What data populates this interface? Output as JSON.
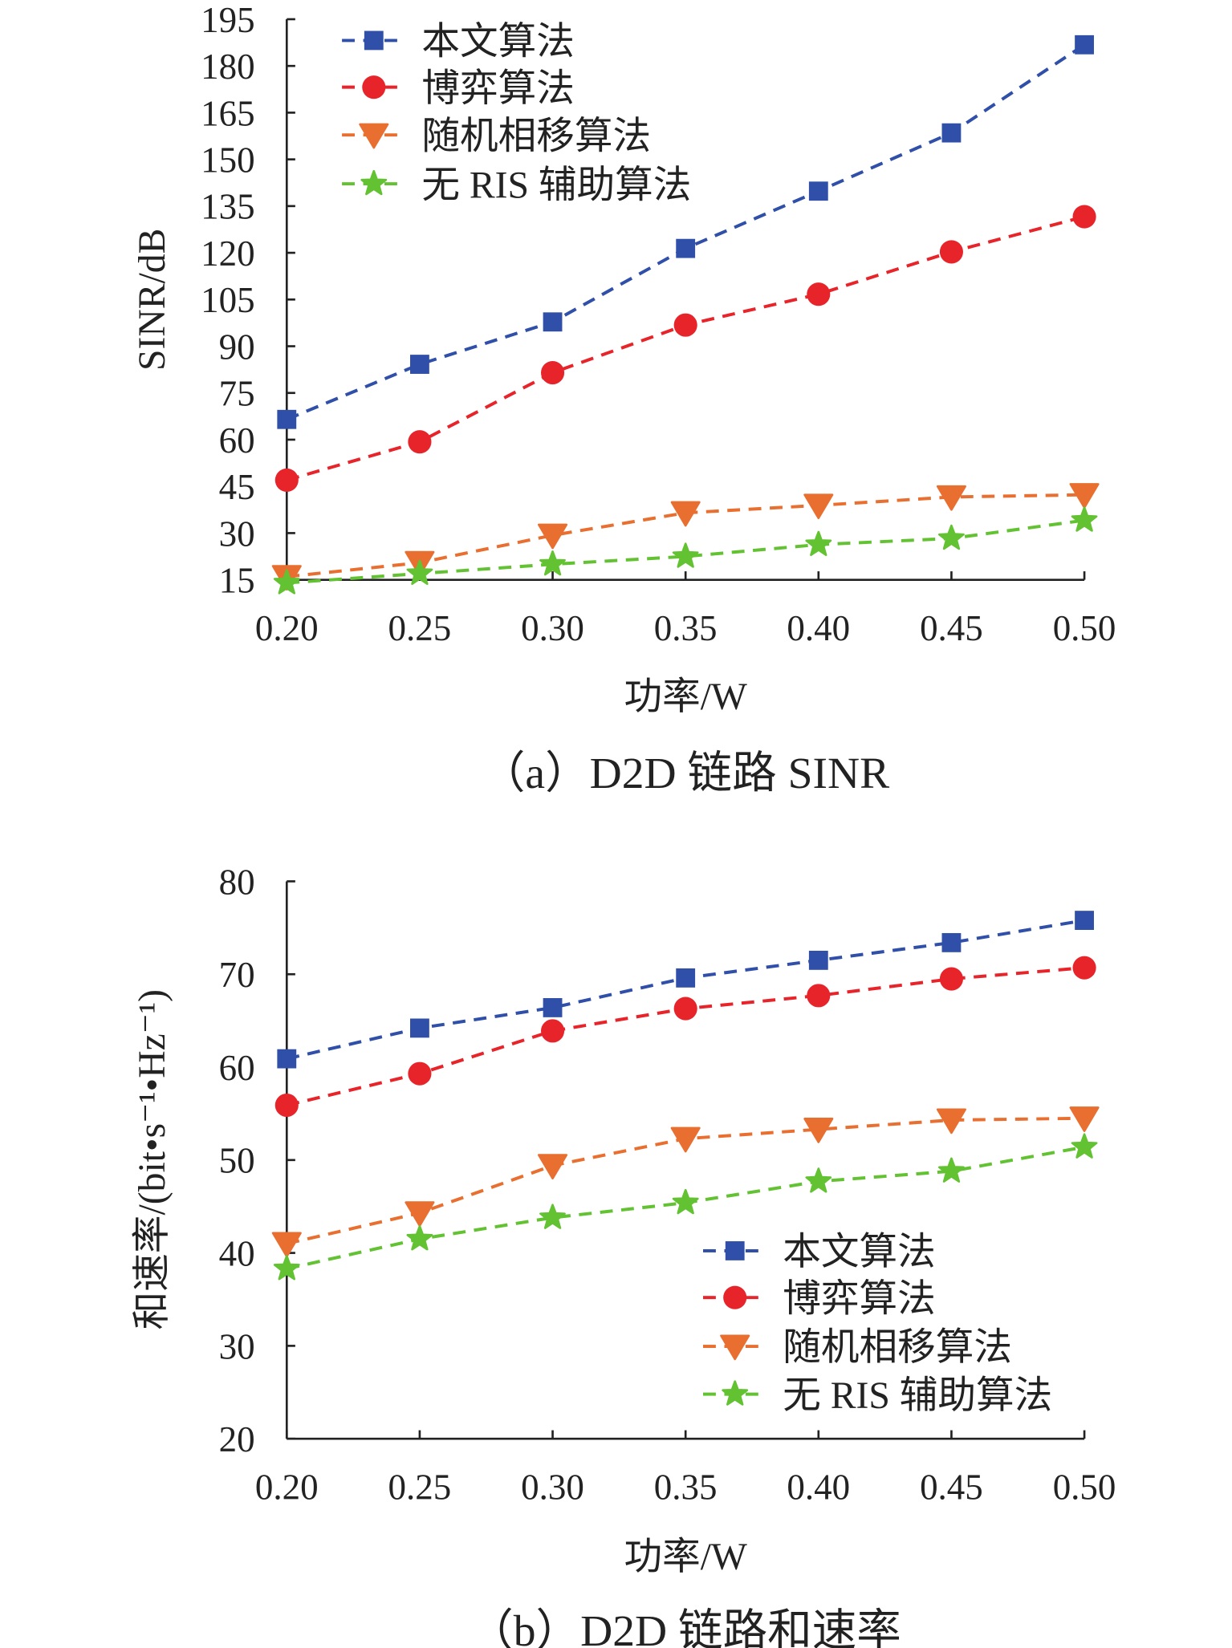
{
  "chart_data": [
    {
      "type": "line",
      "caption": "（a）D2D 链路 SINR",
      "xlabel": "功率/W",
      "ylabel": "SINR/dB",
      "x": [
        0.2,
        0.25,
        0.3,
        0.35,
        0.4,
        0.45,
        0.5
      ],
      "xticks": [
        "0.20",
        "0.25",
        "0.30",
        "0.35",
        "0.40",
        "0.45",
        "0.50"
      ],
      "yticks": [
        "15",
        "30",
        "45",
        "60",
        "75",
        "90",
        "105",
        "120",
        "135",
        "150",
        "165",
        "180",
        "195"
      ],
      "xlim": [
        0.2,
        0.5
      ],
      "ylim": [
        15,
        195
      ],
      "legend_position": "top-left",
      "series": [
        {
          "name": "本文算法",
          "color": "#2f4fa8",
          "marker": "square",
          "values": [
            66.5,
            84.2,
            97.8,
            121.4,
            139.8,
            158.5,
            186.8
          ]
        },
        {
          "name": "博弈算法",
          "color": "#e8242b",
          "marker": "circle",
          "values": [
            47.0,
            59.3,
            81.5,
            96.8,
            106.7,
            120.3,
            131.6
          ]
        },
        {
          "name": "随机相移算法",
          "color": "#e86f2f",
          "marker": "triangle-down",
          "values": [
            16.0,
            20.5,
            29.3,
            36.5,
            38.9,
            41.6,
            42.3
          ]
        },
        {
          "name": "无 RIS 辅助算法",
          "color": "#62c232",
          "marker": "star",
          "values": [
            14.0,
            17.0,
            20.0,
            22.5,
            26.3,
            28.3,
            34.1
          ]
        }
      ]
    },
    {
      "type": "line",
      "caption": "（b）D2D 链路和速率",
      "xlabel": "功率/W",
      "ylabel": "和速率/(bit•s⁻¹•Hz⁻¹)",
      "x": [
        0.2,
        0.25,
        0.3,
        0.35,
        0.4,
        0.45,
        0.5
      ],
      "xticks": [
        "0.20",
        "0.25",
        "0.30",
        "0.35",
        "0.40",
        "0.45",
        "0.50"
      ],
      "yticks": [
        "20",
        "30",
        "40",
        "50",
        "60",
        "70",
        "80"
      ],
      "xlim": [
        0.2,
        0.5
      ],
      "ylim": [
        20,
        80
      ],
      "legend_position": "bottom-right",
      "series": [
        {
          "name": "本文算法",
          "color": "#2f4fa8",
          "marker": "square",
          "values": [
            60.9,
            64.2,
            66.4,
            69.6,
            71.5,
            73.4,
            75.8
          ]
        },
        {
          "name": "博弈算法",
          "color": "#e8242b",
          "marker": "circle",
          "values": [
            55.9,
            59.3,
            63.9,
            66.3,
            67.7,
            69.5,
            70.7
          ]
        },
        {
          "name": "随机相移算法",
          "color": "#e86f2f",
          "marker": "triangle-down",
          "values": [
            41.0,
            44.3,
            49.4,
            52.3,
            53.3,
            54.3,
            54.5
          ]
        },
        {
          "name": "无 RIS 辅助算法",
          "color": "#62c232",
          "marker": "star",
          "values": [
            38.3,
            41.5,
            43.8,
            45.4,
            47.7,
            48.8,
            51.4
          ]
        }
      ]
    }
  ]
}
